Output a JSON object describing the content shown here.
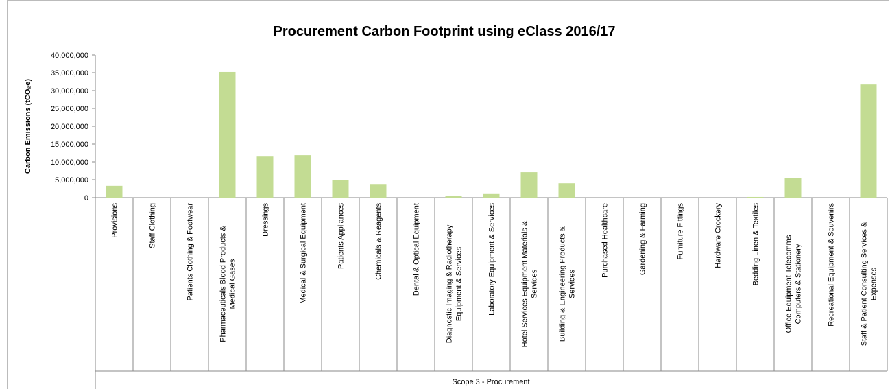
{
  "chart_data": {
    "type": "bar",
    "title": "Procurement Carbon Footprint using eClass 2016/17",
    "y_label": "Carbon Emissions (tCO₂e)",
    "x_group_label": "Scope 3 - Procurement",
    "color": "#c3dc93",
    "categories": [
      [
        "Provisions"
      ],
      [
        "Staff Clothing"
      ],
      [
        "Patients Clothing & Footwear"
      ],
      [
        "Pharmaceuticals Blood Products &",
        "Medical Gases"
      ],
      [
        "Dressings"
      ],
      [
        "Medical & Surgical Equipment"
      ],
      [
        "Patients Appliances"
      ],
      [
        "Chemicals & Reagents"
      ],
      [
        "Dental & Optical Equipment"
      ],
      [
        "Diagnostic Imaging & Radiotherapy",
        "Equipment & Services"
      ],
      [
        "Laboratory Equipment & Services"
      ],
      [
        "Hotel Services Equipment Materials &",
        "Services"
      ],
      [
        "Building & Engineering Products &",
        "Services"
      ],
      [
        "Purchased Healthcare"
      ],
      [
        "Gardening & Farming"
      ],
      [
        "Furniture Fittings"
      ],
      [
        "Hardware Crockery"
      ],
      [
        "Bedding Linen & Textiles"
      ],
      [
        "Office Equipment Telecomms",
        "Computers & Stationery"
      ],
      [
        "Recreational Equipment & Souvenirs"
      ],
      [
        "Staff & Patient Consulting Services &",
        "Expenses"
      ]
    ],
    "values": [
      3300000,
      0,
      0,
      35200000,
      11500000,
      11900000,
      5000000,
      3800000,
      0,
      400000,
      1000000,
      7100000,
      4000000,
      0,
      0,
      0,
      0,
      200000,
      5400000,
      0,
      31700000
    ],
    "ylim": [
      0,
      40000000
    ],
    "yticks": [
      0,
      {
        "value": 5000000,
        "label": "5,000,000"
      },
      {
        "value": 10000000,
        "label": "10,000,000"
      },
      {
        "value": 15000000,
        "label": "15,000,000"
      },
      {
        "value": 20000000,
        "label": "20,000,000"
      },
      {
        "value": 25000000,
        "label": "25,000,000"
      },
      {
        "value": 30000000,
        "label": "30,000,000"
      },
      {
        "value": 35000000,
        "label": "35,000,000"
      },
      {
        "value": 40000000,
        "label": "40,000,000"
      }
    ],
    "grid": false
  }
}
